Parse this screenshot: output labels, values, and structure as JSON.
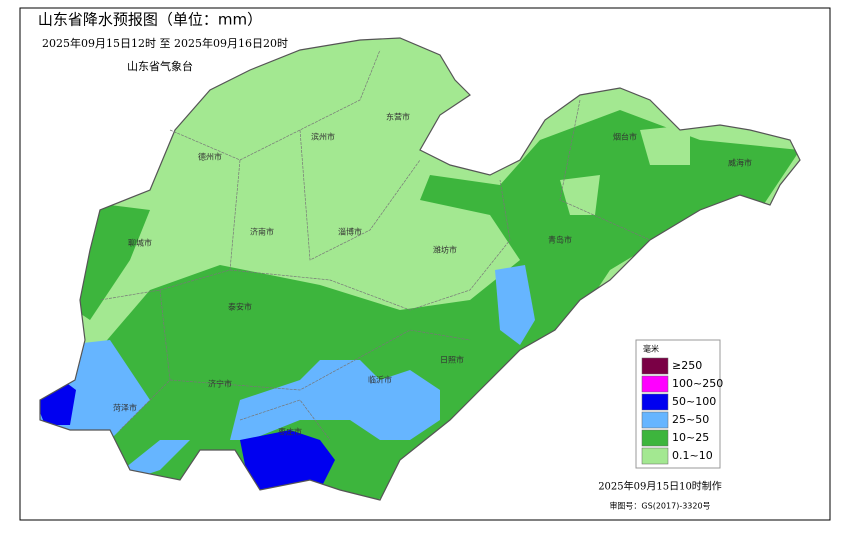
{
  "header": {
    "title": "山东省降水预报图（单位：mm）",
    "period": "2025年09月15日12时  至  2025年09月16日20时",
    "issuer": "山东省气象台"
  },
  "cities": [
    {
      "label": "德州市"
    },
    {
      "label": "滨州市"
    },
    {
      "label": "东营市"
    },
    {
      "label": "烟台市"
    },
    {
      "label": "威海市"
    },
    {
      "label": "聊城市"
    },
    {
      "label": "济南市"
    },
    {
      "label": "淄博市"
    },
    {
      "label": "潍坊市"
    },
    {
      "label": "青岛市"
    },
    {
      "label": "泰安市"
    },
    {
      "label": "日照市"
    },
    {
      "label": "济宁市"
    },
    {
      "label": "临沂市"
    },
    {
      "label": "菏泽市"
    },
    {
      "label": "枣庄市"
    }
  ],
  "legend": {
    "title": "毫米",
    "items": [
      {
        "label": "≥250",
        "color": "#7a0045"
      },
      {
        "label": "100~250",
        "color": "#ff00ff"
      },
      {
        "label": "50~100",
        "color": "#0000f0"
      },
      {
        "label": "25~50",
        "color": "#66b5ff"
      },
      {
        "label": "10~25",
        "color": "#3db53d"
      },
      {
        "label": "0.1~10",
        "color": "#a3e891"
      }
    ]
  },
  "footer": {
    "made": "2025年09月15日10时制作",
    "approval": "审图号：GS(2017)-3320号"
  }
}
